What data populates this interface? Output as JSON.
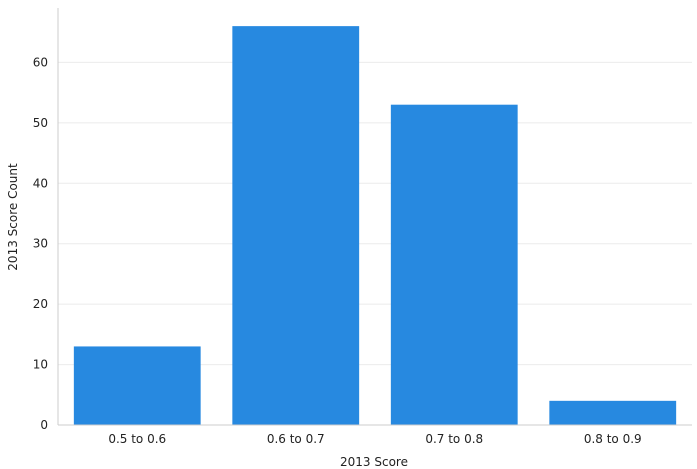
{
  "chart_data": {
    "type": "bar",
    "title": "",
    "xlabel": "2013 Score",
    "ylabel": "2013 Score Count",
    "categories": [
      "0.5 to 0.6",
      "0.6 to 0.7",
      "0.7 to 0.8",
      "0.8 to 0.9"
    ],
    "values": [
      13,
      66,
      53,
      4
    ],
    "ylim": [
      0,
      69
    ],
    "yticks": [
      0,
      10,
      20,
      30,
      40,
      50,
      60
    ],
    "grid": true,
    "legend": "none",
    "colors": {
      "bar": "#2789e0",
      "grid": "#ebebeb",
      "axis": "#cccccc",
      "text": "#222222"
    }
  }
}
